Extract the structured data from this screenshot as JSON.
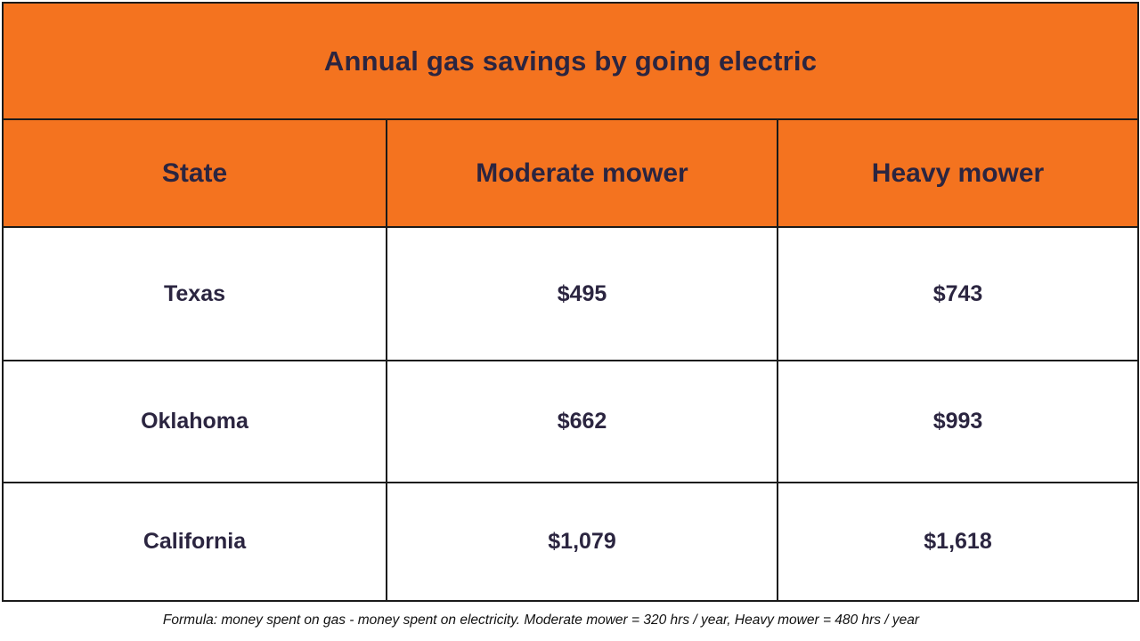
{
  "chart_data": {
    "type": "table",
    "title": "Annual gas savings by going electric",
    "columns": [
      "State",
      "Moderate mower",
      "Heavy mower"
    ],
    "rows": [
      [
        "Texas",
        "$495",
        "$743"
      ],
      [
        "Oklahoma",
        "$662",
        "$993"
      ],
      [
        "California",
        "$1,079",
        "$1,618"
      ]
    ],
    "series": [
      {
        "name": "Moderate mower",
        "values": [
          495,
          662,
          1079
        ]
      },
      {
        "name": "Heavy mower",
        "values": [
          743,
          993,
          1618
        ]
      }
    ],
    "categories": [
      "Texas",
      "Oklahoma",
      "California"
    ],
    "footnote": "Formula: money spent on gas - money spent on electricity. Moderate mower = 320 hrs / year, Heavy mower = 480 hrs / year"
  },
  "colors": {
    "accent_orange": "#f4731f",
    "text_dark": "#2b2540",
    "border": "#1a1a1a",
    "row_background": "#ffffff"
  }
}
